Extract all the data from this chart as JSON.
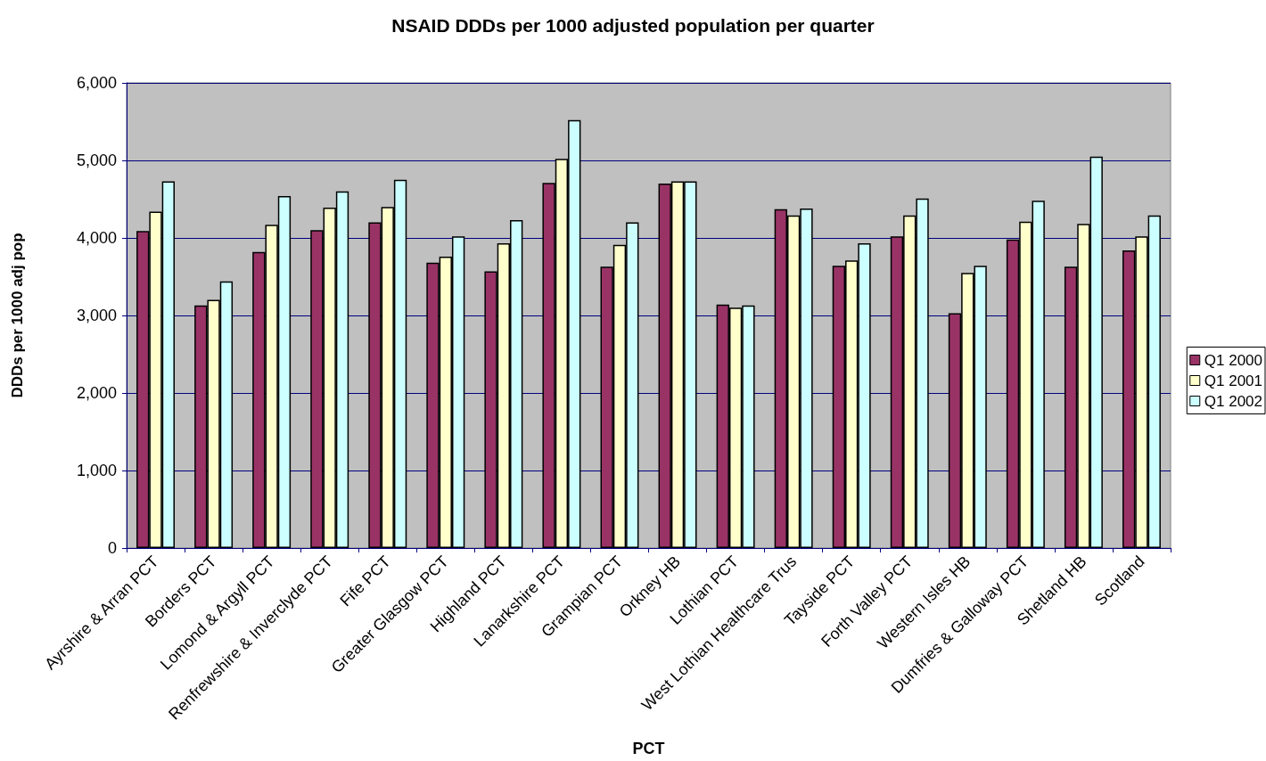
{
  "chart_data": {
    "type": "bar",
    "title": "NSAID DDDs per 1000 adjusted population per quarter",
    "xlabel": "PCT",
    "ylabel": "DDDs per 1000 adj pop",
    "categories": [
      "Ayrshire & Arran PCT",
      "Borders PCT",
      "Lomond & Argyll PCT",
      "Renfrewshire & Inverclyde PCT",
      "Fife PCT",
      "Greater Glasgow PCT",
      "Highland PCT",
      "Lanarkshire PCT",
      "Grampian PCT",
      "Orkney HB",
      "Lothian PCT",
      "West Lothian Healthcare Trus",
      "Tayside PCT",
      "Forth Valley PCT",
      "Western Isles HB",
      "Dumfries & Galloway PCT",
      "Shetland HB",
      "Scotland"
    ],
    "series": [
      {
        "name": "Q1 2000",
        "color": "#993366",
        "values": [
          4090,
          3130,
          3820,
          4100,
          4200,
          3680,
          3570,
          4710,
          3630,
          4700,
          3140,
          4370,
          3640,
          4020,
          3030,
          3980,
          3630,
          3840
        ]
      },
      {
        "name": "Q1 2001",
        "color": "#ffffcc",
        "values": [
          4340,
          3200,
          4170,
          4390,
          4400,
          3760,
          3930,
          5020,
          3910,
          4730,
          3100,
          4290,
          3710,
          4290,
          3550,
          4210,
          4180,
          4020
        ]
      },
      {
        "name": "Q1 2002",
        "color": "#ccffff",
        "values": [
          4730,
          3440,
          4540,
          4600,
          4750,
          4020,
          4230,
          5520,
          4200,
          4730,
          3130,
          4380,
          3930,
          4510,
          3640,
          4480,
          5050,
          4290
        ]
      }
    ],
    "ylim": [
      0,
      6000
    ],
    "yticks": [
      0,
      {
        "value": 1000,
        "label": "1,000"
      },
      {
        "value": 2000,
        "label": "2,000"
      },
      {
        "value": 3000,
        "label": "3,000"
      },
      {
        "value": 4000,
        "label": "4,000"
      },
      {
        "value": 5000,
        "label": "5,000"
      },
      {
        "value": 6000,
        "label": "6,000"
      }
    ],
    "grid": "y",
    "legend": "right"
  }
}
